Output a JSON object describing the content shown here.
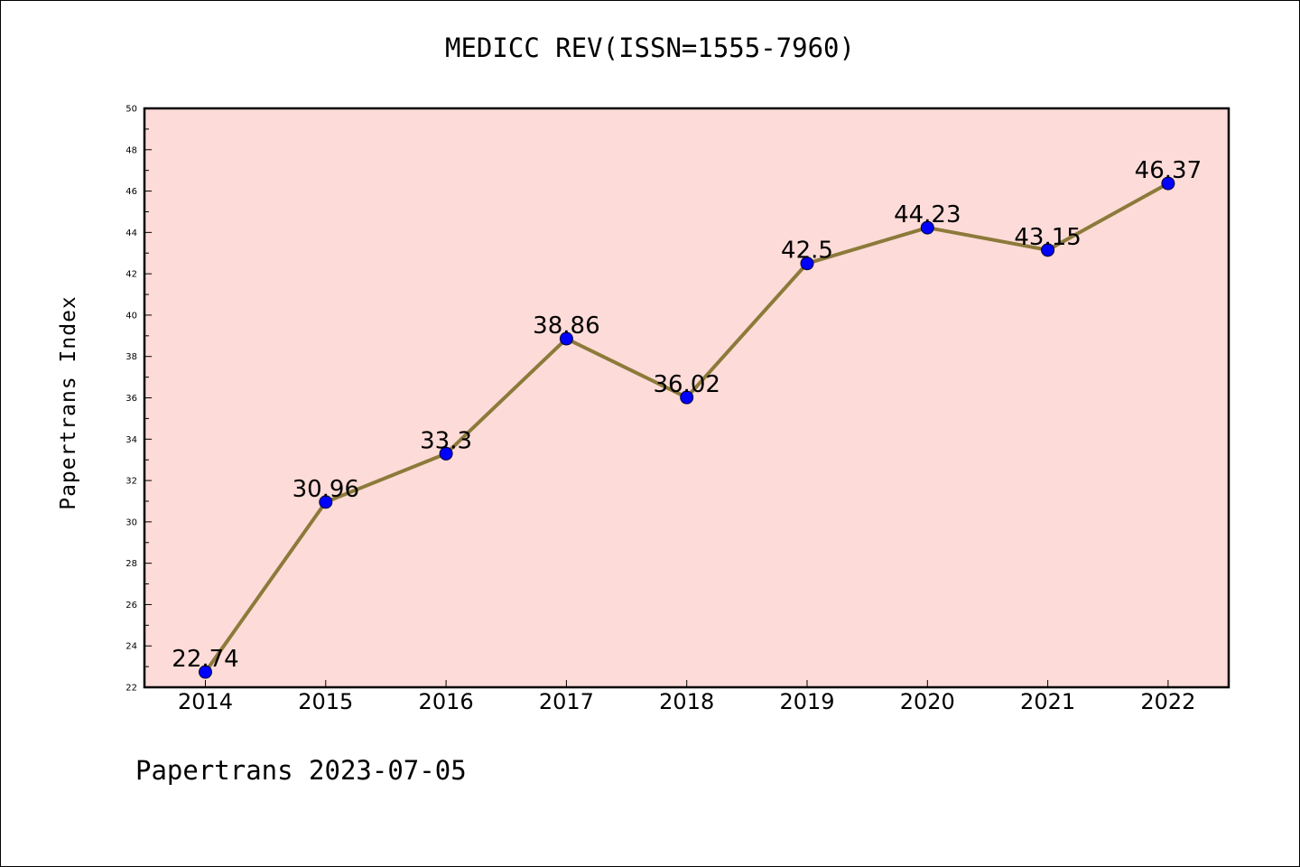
{
  "page": {
    "title": "MEDICC REV(ISSN=1555-7960)",
    "footer": "Papertrans 2023-07-05"
  },
  "colors": {
    "plot_background": "#fddbd8",
    "line": "#8c7a3a",
    "marker": "#0000ff",
    "axes": "#000000"
  },
  "chart_data": {
    "type": "line",
    "title": "MEDICC REV(ISSN=1555-7960)",
    "xlabel": "",
    "ylabel": "Papertrans Index",
    "categories": [
      "2014",
      "2015",
      "2016",
      "2017",
      "2018",
      "2019",
      "2020",
      "2021",
      "2022"
    ],
    "series": [
      {
        "values": [
          22.74,
          30.96,
          33.3,
          38.86,
          36.02,
          42.5,
          44.23,
          43.15,
          46.37
        ],
        "labels": [
          "22.74",
          "30.96",
          "33.3",
          "38.86",
          "36.02",
          "42.5",
          "44.23",
          "43.15",
          "46.37"
        ]
      }
    ],
    "ylim": [
      22,
      50
    ],
    "yticks": [
      "22",
      "24",
      "26",
      "28",
      "30",
      "32",
      "34",
      "36",
      "38",
      "40",
      "42",
      "44",
      "46",
      "48",
      "50"
    ],
    "grid": false,
    "legend": "none"
  }
}
